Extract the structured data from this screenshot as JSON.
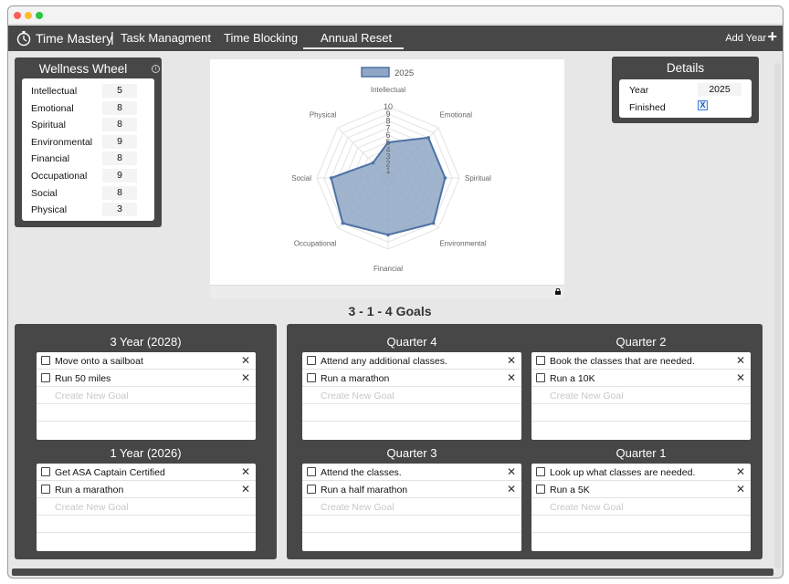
{
  "navbar": {
    "brand": "Time Mastery",
    "separator": "|",
    "links": [
      "Task Managment",
      "Time Blocking",
      "Annual Reset"
    ],
    "active_link": "Annual Reset",
    "add_year_label": "Add Year",
    "add_icon": "plus-icon"
  },
  "wellness_wheel": {
    "title": "Wellness Wheel",
    "info_icon": "info-icon",
    "rows": [
      {
        "label": "Intellectual",
        "value": "5"
      },
      {
        "label": "Emotional",
        "value": "8"
      },
      {
        "label": "Spiritual",
        "value": "8"
      },
      {
        "label": "Environmental",
        "value": "9"
      },
      {
        "label": "Financial",
        "value": "8"
      },
      {
        "label": "Occupational",
        "value": "9"
      },
      {
        "label": "Social",
        "value": "8"
      },
      {
        "label": "Physical",
        "value": "3"
      }
    ]
  },
  "chart_data": {
    "type": "radar",
    "legend": "2025",
    "axes": [
      "Intellectual",
      "Emotional",
      "Spiritual",
      "Environmental",
      "Financial",
      "Occupational",
      "Social",
      "Physical"
    ],
    "values": [
      5,
      8,
      8,
      9,
      8,
      9,
      8,
      3
    ],
    "ticks": [
      "1",
      "2",
      "3",
      "4",
      "5",
      "6",
      "7",
      "8",
      "9",
      "10"
    ],
    "r_range": [
      0,
      10
    ],
    "fill_color": "#8fa7c4",
    "line_color": "#4e72a6"
  },
  "details": {
    "title": "Details",
    "year_label": "Year",
    "year_value": "2025",
    "finished_label": "Finished",
    "finished_mark": "X"
  },
  "goals_heading": "3 - 1 - 4 Goals",
  "placeholder": "Create New Goal",
  "sections": {
    "three_year": {
      "title": "3 Year (2028)",
      "goals": [
        "Move onto a sailboat",
        "Run 50 miles"
      ]
    },
    "one_year": {
      "title": "1 Year (2026)",
      "goals": [
        "Get ASA Captain Certified",
        "Run a marathon"
      ]
    },
    "q4": {
      "title": "Quarter 4",
      "goals": [
        "Attend any additional classes.",
        "Run a marathon"
      ]
    },
    "q2": {
      "title": "Quarter 2",
      "goals": [
        "Book the classes that are needed.",
        "Run a 10K"
      ]
    },
    "q3": {
      "title": "Quarter 3",
      "goals": [
        "Attend the classes.",
        "Run a half marathon"
      ]
    },
    "q1": {
      "title": "Quarter 1",
      "goals": [
        "Look up what classes are needed.",
        "Run a 5K"
      ]
    }
  },
  "remove_glyph": "✕"
}
